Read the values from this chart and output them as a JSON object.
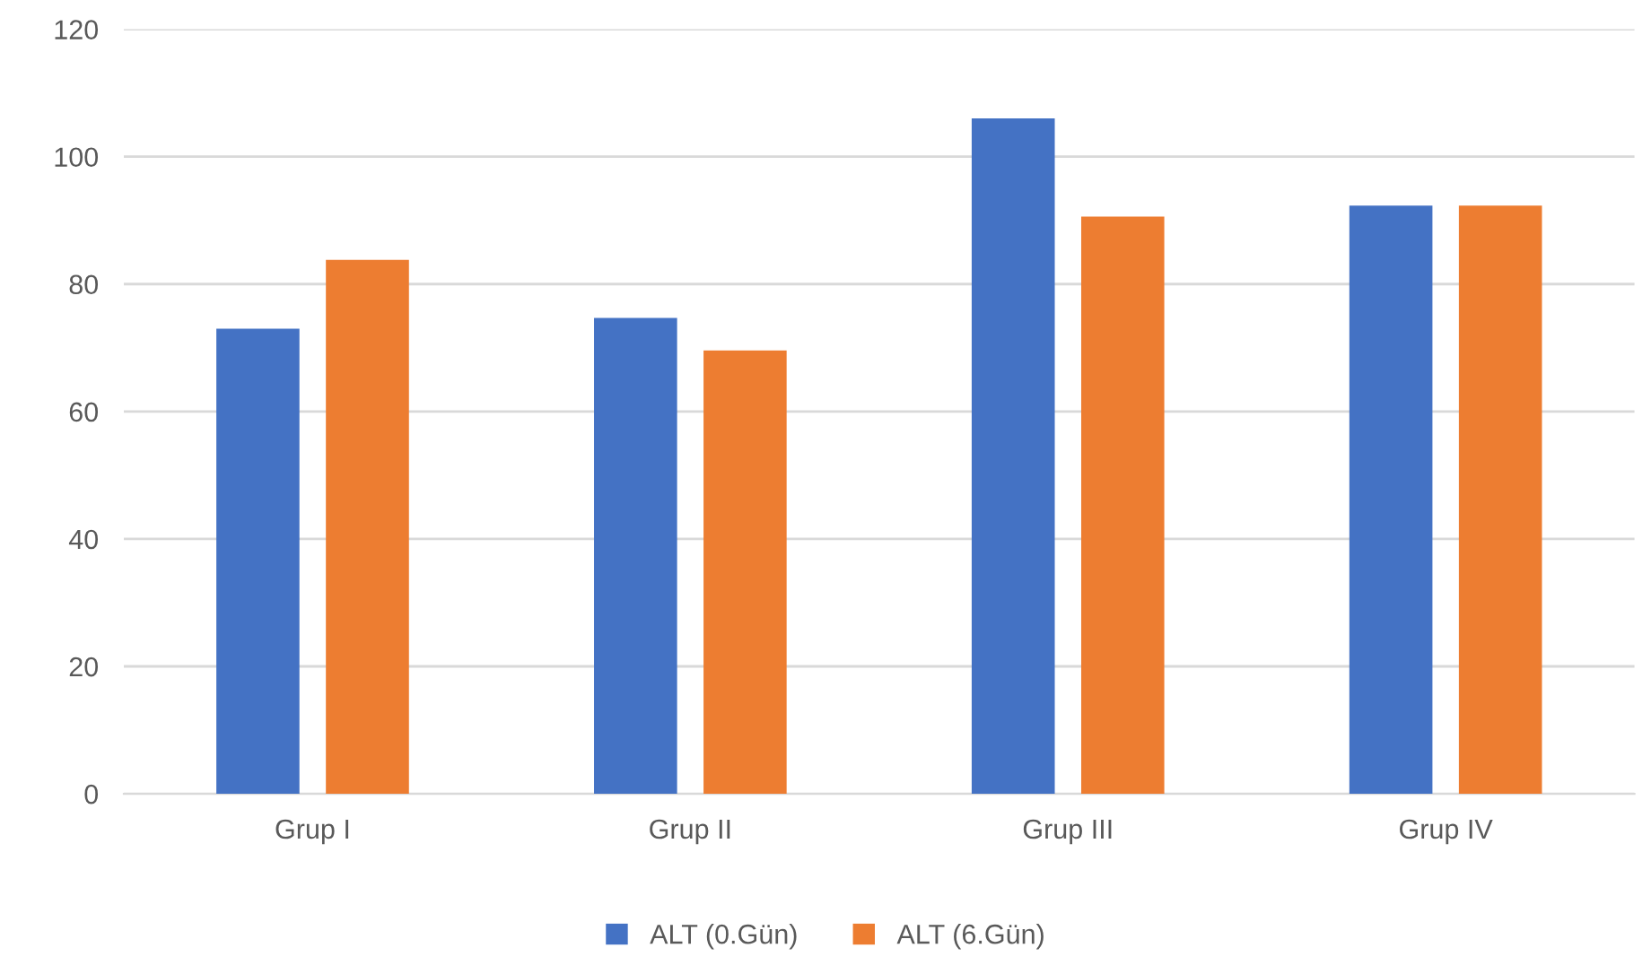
{
  "chart_data": {
    "type": "bar",
    "categories": [
      "Grup I",
      "Grup II",
      "Grup III",
      "Grup IV"
    ],
    "series": [
      {
        "name": "ALT (0.Gün)",
        "color": "#4472c4",
        "values": [
          73,
          74.7,
          106,
          92.3
        ]
      },
      {
        "name": "ALT (6.Gün)",
        "color": "#ed7d31",
        "values": [
          83.8,
          69.6,
          90.6,
          92.3
        ]
      }
    ],
    "ylim": [
      0,
      120
    ],
    "yticks": [
      0,
      20,
      40,
      60,
      80,
      100,
      120
    ],
    "grid": "y",
    "legend": "bottom"
  }
}
